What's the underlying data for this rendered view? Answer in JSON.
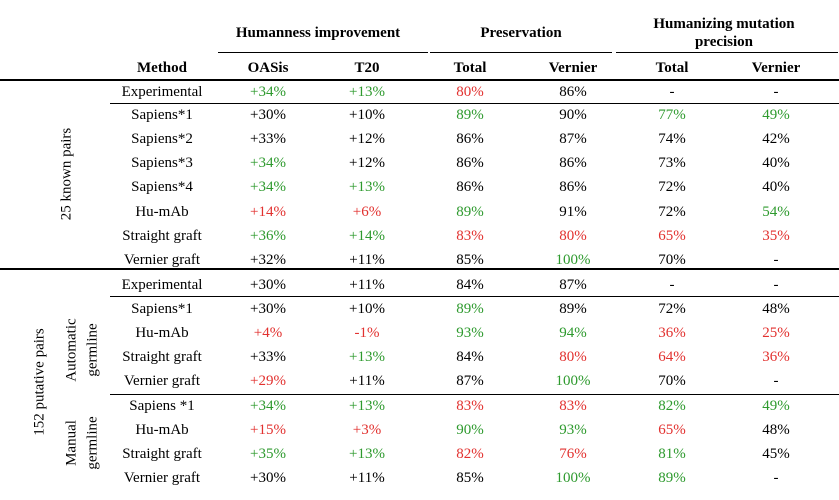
{
  "header": {
    "group1": "Humanness improvement",
    "group2": "Preservation",
    "group3_line1": "Humanizing mutation",
    "group3_line2": "precision",
    "cols": [
      "Method",
      "OASis",
      "T20",
      "Total",
      "Vernier",
      "Total",
      "Vernier"
    ]
  },
  "sections": {
    "known": "25 known pairs",
    "putative": "152 putative pairs",
    "automatic_line1": "Automatic",
    "automatic_line2": "germline",
    "manual_line1": "Manual",
    "manual_line2": "germline"
  },
  "colors": {
    "green": "#2e9a2e",
    "red": "#e2312f",
    "black": "#000000"
  },
  "rows": [
    {
      "method": "Experimental",
      "cells": [
        [
          "+34%",
          "g"
        ],
        [
          "+13%",
          "g"
        ],
        [
          "80%",
          "r"
        ],
        [
          "86%",
          "k"
        ],
        [
          "-",
          "k"
        ],
        [
          "-",
          "k"
        ]
      ]
    },
    {
      "method": "Sapiens*1",
      "cells": [
        [
          "+30%",
          "k"
        ],
        [
          "+10%",
          "k"
        ],
        [
          "89%",
          "g"
        ],
        [
          "90%",
          "k"
        ],
        [
          "77%",
          "g"
        ],
        [
          "49%",
          "g"
        ]
      ]
    },
    {
      "method": "Sapiens*2",
      "cells": [
        [
          "+33%",
          "k"
        ],
        [
          "+12%",
          "k"
        ],
        [
          "86%",
          "k"
        ],
        [
          "87%",
          "k"
        ],
        [
          "74%",
          "k"
        ],
        [
          "42%",
          "k"
        ]
      ]
    },
    {
      "method": "Sapiens*3",
      "cells": [
        [
          "+34%",
          "g"
        ],
        [
          "+12%",
          "k"
        ],
        [
          "86%",
          "k"
        ],
        [
          "86%",
          "k"
        ],
        [
          "73%",
          "k"
        ],
        [
          "40%",
          "k"
        ]
      ]
    },
    {
      "method": "Sapiens*4",
      "cells": [
        [
          "+34%",
          "g"
        ],
        [
          "+13%",
          "g"
        ],
        [
          "86%",
          "k"
        ],
        [
          "86%",
          "k"
        ],
        [
          "72%",
          "k"
        ],
        [
          "40%",
          "k"
        ]
      ]
    },
    {
      "method": "Hu-mAb",
      "cells": [
        [
          "+14%",
          "r"
        ],
        [
          "+6%",
          "r"
        ],
        [
          "89%",
          "g"
        ],
        [
          "91%",
          "k"
        ],
        [
          "72%",
          "k"
        ],
        [
          "54%",
          "g"
        ]
      ]
    },
    {
      "method": "Straight graft",
      "cells": [
        [
          "+36%",
          "g"
        ],
        [
          "+14%",
          "g"
        ],
        [
          "83%",
          "r"
        ],
        [
          "80%",
          "r"
        ],
        [
          "65%",
          "r"
        ],
        [
          "35%",
          "r"
        ]
      ]
    },
    {
      "method": "Vernier graft",
      "cells": [
        [
          "+32%",
          "k"
        ],
        [
          "+11%",
          "k"
        ],
        [
          "85%",
          "k"
        ],
        [
          "100%",
          "g"
        ],
        [
          "70%",
          "k"
        ],
        [
          "-",
          "k"
        ]
      ]
    },
    {
      "method": "Experimental",
      "cells": [
        [
          "+30%",
          "k"
        ],
        [
          "+11%",
          "k"
        ],
        [
          "84%",
          "k"
        ],
        [
          "87%",
          "k"
        ],
        [
          "-",
          "k"
        ],
        [
          "-",
          "k"
        ]
      ]
    },
    {
      "method": "Sapiens*1",
      "cells": [
        [
          "+30%",
          "k"
        ],
        [
          "+10%",
          "k"
        ],
        [
          "89%",
          "g"
        ],
        [
          "89%",
          "k"
        ],
        [
          "72%",
          "k"
        ],
        [
          "48%",
          "k"
        ]
      ]
    },
    {
      "method": "Hu-mAb",
      "cells": [
        [
          "+4%",
          "r"
        ],
        [
          "-1%",
          "r"
        ],
        [
          "93%",
          "g"
        ],
        [
          "94%",
          "g"
        ],
        [
          "36%",
          "r"
        ],
        [
          "25%",
          "r"
        ]
      ]
    },
    {
      "method": "Straight graft",
      "cells": [
        [
          "+33%",
          "k"
        ],
        [
          "+13%",
          "g"
        ],
        [
          "84%",
          "k"
        ],
        [
          "80%",
          "r"
        ],
        [
          "64%",
          "r"
        ],
        [
          "36%",
          "r"
        ]
      ]
    },
    {
      "method": "Vernier graft",
      "cells": [
        [
          "+29%",
          "r"
        ],
        [
          "+11%",
          "k"
        ],
        [
          "87%",
          "k"
        ],
        [
          "100%",
          "g"
        ],
        [
          "70%",
          "k"
        ],
        [
          "-",
          "k"
        ]
      ]
    },
    {
      "method": "Sapiens *1",
      "cells": [
        [
          "+34%",
          "g"
        ],
        [
          "+13%",
          "g"
        ],
        [
          "83%",
          "r"
        ],
        [
          "83%",
          "r"
        ],
        [
          "82%",
          "g"
        ],
        [
          "49%",
          "g"
        ]
      ]
    },
    {
      "method": "Hu-mAb",
      "cells": [
        [
          "+15%",
          "r"
        ],
        [
          "+3%",
          "r"
        ],
        [
          "90%",
          "g"
        ],
        [
          "93%",
          "g"
        ],
        [
          "65%",
          "r"
        ],
        [
          "48%",
          "k"
        ]
      ]
    },
    {
      "method": "Straight graft",
      "cells": [
        [
          "+35%",
          "g"
        ],
        [
          "+13%",
          "g"
        ],
        [
          "82%",
          "r"
        ],
        [
          "76%",
          "r"
        ],
        [
          "81%",
          "g"
        ],
        [
          "45%",
          "k"
        ]
      ]
    },
    {
      "method": "Vernier graft",
      "cells": [
        [
          "+30%",
          "k"
        ],
        [
          "+11%",
          "k"
        ],
        [
          "85%",
          "k"
        ],
        [
          "100%",
          "g"
        ],
        [
          "89%",
          "g"
        ],
        [
          "-",
          "k"
        ]
      ]
    }
  ]
}
